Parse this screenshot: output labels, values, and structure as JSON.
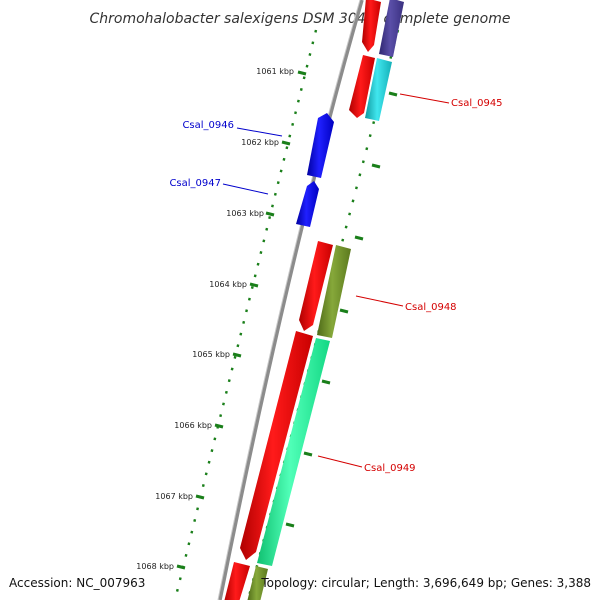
{
  "title": "Chromohalobacter salexigens DSM 3043, complete genome",
  "footer": {
    "accession": "Accession: NC_007963",
    "topology": "Topology: circular; Length: 3,696,649 bp; Genes: 3,388"
  },
  "ticks": [
    "1061 kbp",
    "1062 kbp",
    "1063 kbp",
    "1064 kbp",
    "1065 kbp",
    "1066 kbp",
    "1067 kbp",
    "1068 kbp"
  ],
  "gene_labels": {
    "csal_0945": "Csal_0945",
    "csal_0946": "Csal_0946",
    "csal_0947": "Csal_0947",
    "csal_0948": "Csal_0948",
    "csal_0949": "Csal_0949"
  },
  "colors": {
    "backbone": "#8c8c8c",
    "reverse_cds": "#ff0000",
    "forward_cds": "#0000ff",
    "cog_purple": "#4b3f8f",
    "cog_cyan": "#20c9d0",
    "cog_olive": "#6b8e23",
    "cog_aqua": "#1aff9c",
    "tick_green": "#1a7f1a",
    "label_red": "#d40000",
    "label_blue": "#0000cc"
  }
}
